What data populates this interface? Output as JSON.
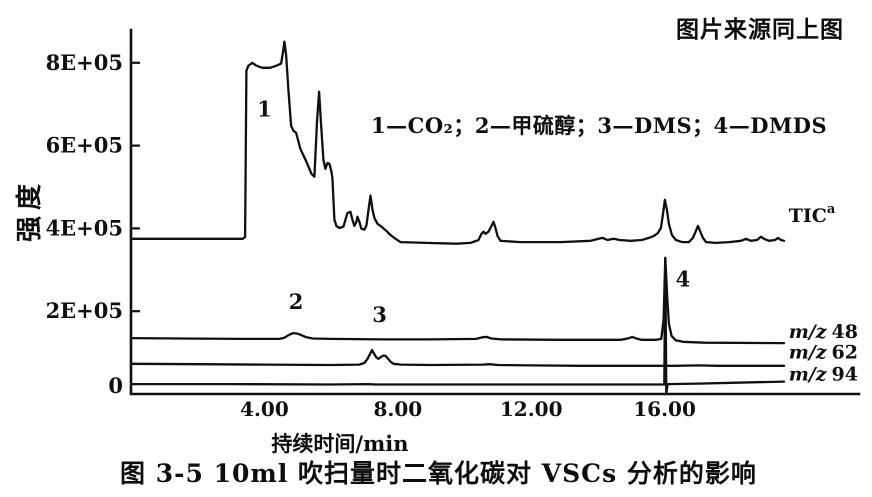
{
  "header": {
    "source_note": "图片来源同上图"
  },
  "figure": {
    "caption": "图 3-5  10ml 吹扫量时二氧化碳对 VSCs 分析的影响"
  },
  "chart_data": {
    "type": "line",
    "title": "图 3-5 10ml吹扫量时二氧化碳对VSCs分析的影响",
    "xlabel": "持续时间/min",
    "ylabel": "强度",
    "legend_text": "1—CO₂；2—甲硫醇；3—DMS；4—DMDS",
    "intensity_unit": "1E+05",
    "xlim": [
      0,
      21.8
    ],
    "ylim": [
      0,
      9
    ],
    "grid": false,
    "x_ticks": [
      {
        "t": 4,
        "label": "4.00"
      },
      {
        "t": 8,
        "label": "8.00"
      },
      {
        "t": 12,
        "label": "12.00"
      },
      {
        "t": 16,
        "label": "16.00"
      }
    ],
    "y_ticks": [
      {
        "v": 8,
        "label": "8E+05"
      },
      {
        "v": 6,
        "label": "6E+05"
      },
      {
        "v": 4,
        "label": "4E+05"
      },
      {
        "v": 2,
        "label": "2E+05"
      },
      {
        "v": 0,
        "label": "0"
      }
    ],
    "peak_annotations": [
      {
        "label": "1",
        "compound": "CO₂",
        "t": 4.0,
        "i": 6.7
      },
      {
        "label": "2",
        "compound": "甲硫醇",
        "t": 4.95,
        "i": 2.05
      },
      {
        "label": "3",
        "compound": "DMS",
        "t": 7.45,
        "i": 1.74
      },
      {
        "label": "4",
        "compound": "DMDS",
        "t": 16.55,
        "i": 2.6
      }
    ],
    "series": [
      {
        "name": "TIC",
        "sup": "a",
        "label_pos": {
          "t": 19.72,
          "i": 4.3
        },
        "points": [
          [
            0,
            3.75
          ],
          [
            3.35,
            3.75
          ],
          [
            3.42,
            3.79
          ],
          [
            3.46,
            7.81
          ],
          [
            3.52,
            7.93
          ],
          [
            3.64,
            8.0
          ],
          [
            3.76,
            7.93
          ],
          [
            3.94,
            7.88
          ],
          [
            4.17,
            7.88
          ],
          [
            4.36,
            7.93
          ],
          [
            4.5,
            7.98
          ],
          [
            4.56,
            8.27
          ],
          [
            4.6,
            8.51
          ],
          [
            4.65,
            8.19
          ],
          [
            4.72,
            7.35
          ],
          [
            4.8,
            6.48
          ],
          [
            4.87,
            6.36
          ],
          [
            4.95,
            6.31
          ],
          [
            5.08,
            5.92
          ],
          [
            5.26,
            5.61
          ],
          [
            5.41,
            5.32
          ],
          [
            5.5,
            5.25
          ],
          [
            5.58,
            6.62
          ],
          [
            5.64,
            7.3
          ],
          [
            5.7,
            6.5
          ],
          [
            5.77,
            5.66
          ],
          [
            5.83,
            5.44
          ],
          [
            5.89,
            5.58
          ],
          [
            5.95,
            5.56
          ],
          [
            6.01,
            5.37
          ],
          [
            6.04,
            5.22
          ],
          [
            6.1,
            4.21
          ],
          [
            6.16,
            4.06
          ],
          [
            6.25,
            4.01
          ],
          [
            6.37,
            4.04
          ],
          [
            6.49,
            4.37
          ],
          [
            6.58,
            4.4
          ],
          [
            6.64,
            4.21
          ],
          [
            6.7,
            4.06
          ],
          [
            6.76,
            4.16
          ],
          [
            6.79,
            4.28
          ],
          [
            6.85,
            4.16
          ],
          [
            6.91,
            3.99
          ],
          [
            7.0,
            3.97
          ],
          [
            7.06,
            4.08
          ],
          [
            7.12,
            4.45
          ],
          [
            7.18,
            4.79
          ],
          [
            7.24,
            4.45
          ],
          [
            7.3,
            4.25
          ],
          [
            7.39,
            4.11
          ],
          [
            7.51,
            4.04
          ],
          [
            7.63,
            3.96
          ],
          [
            7.78,
            3.84
          ],
          [
            7.93,
            3.75
          ],
          [
            8.08,
            3.67
          ],
          [
            8.85,
            3.65
          ],
          [
            9.75,
            3.63
          ],
          [
            10.18,
            3.65
          ],
          [
            10.42,
            3.72
          ],
          [
            10.51,
            3.87
          ],
          [
            10.57,
            3.92
          ],
          [
            10.63,
            3.87
          ],
          [
            10.72,
            3.92
          ],
          [
            10.81,
            4.06
          ],
          [
            10.87,
            4.16
          ],
          [
            10.93,
            4.01
          ],
          [
            10.99,
            3.82
          ],
          [
            11.08,
            3.7
          ],
          [
            11.68,
            3.67
          ],
          [
            12.88,
            3.67
          ],
          [
            13.78,
            3.7
          ],
          [
            14.02,
            3.75
          ],
          [
            14.14,
            3.77
          ],
          [
            14.29,
            3.72
          ],
          [
            14.47,
            3.75
          ],
          [
            14.65,
            3.72
          ],
          [
            14.98,
            3.7
          ],
          [
            15.32,
            3.72
          ],
          [
            15.53,
            3.77
          ],
          [
            15.68,
            3.82
          ],
          [
            15.8,
            3.89
          ],
          [
            15.89,
            4.01
          ],
          [
            15.95,
            4.33
          ],
          [
            16.01,
            4.69
          ],
          [
            16.07,
            4.45
          ],
          [
            16.13,
            4.11
          ],
          [
            16.22,
            3.84
          ],
          [
            16.34,
            3.72
          ],
          [
            16.52,
            3.67
          ],
          [
            16.73,
            3.67
          ],
          [
            16.85,
            3.77
          ],
          [
            16.94,
            3.94
          ],
          [
            17.0,
            4.06
          ],
          [
            17.06,
            3.94
          ],
          [
            17.15,
            3.77
          ],
          [
            17.24,
            3.67
          ],
          [
            17.54,
            3.65
          ],
          [
            17.93,
            3.67
          ],
          [
            18.29,
            3.7
          ],
          [
            18.44,
            3.75
          ],
          [
            18.59,
            3.7
          ],
          [
            18.77,
            3.72
          ],
          [
            18.89,
            3.8
          ],
          [
            18.98,
            3.75
          ],
          [
            19.13,
            3.7
          ],
          [
            19.31,
            3.72
          ],
          [
            19.4,
            3.77
          ],
          [
            19.49,
            3.72
          ],
          [
            19.58,
            3.7
          ]
        ]
      },
      {
        "name": "48",
        "prefix": "m/z",
        "label_pos": {
          "t": 19.72,
          "i": 1.5
        },
        "points": [
          [
            0,
            1.35
          ],
          [
            1.5,
            1.34
          ],
          [
            3.3,
            1.33
          ],
          [
            4.45,
            1.33
          ],
          [
            4.6,
            1.36
          ],
          [
            4.72,
            1.42
          ],
          [
            4.86,
            1.47
          ],
          [
            4.99,
            1.46
          ],
          [
            5.11,
            1.42
          ],
          [
            5.26,
            1.37
          ],
          [
            5.45,
            1.34
          ],
          [
            6.0,
            1.33
          ],
          [
            7.5,
            1.32
          ],
          [
            9.0,
            1.32
          ],
          [
            10.35,
            1.33
          ],
          [
            10.54,
            1.37
          ],
          [
            10.66,
            1.38
          ],
          [
            10.81,
            1.34
          ],
          [
            11.1,
            1.32
          ],
          [
            12.9,
            1.31
          ],
          [
            14.7,
            1.31
          ],
          [
            14.94,
            1.35
          ],
          [
            15.03,
            1.38
          ],
          [
            15.12,
            1.35
          ],
          [
            15.3,
            1.31
          ],
          [
            15.75,
            1.31
          ],
          [
            15.9,
            1.33
          ],
          [
            15.97,
            1.8
          ],
          [
            16.02,
            3.29
          ],
          [
            16.08,
            2.3
          ],
          [
            16.13,
            1.7
          ],
          [
            16.21,
            1.4
          ],
          [
            16.33,
            1.3
          ],
          [
            16.55,
            1.26
          ],
          [
            17.2,
            1.24
          ],
          [
            19.58,
            1.23
          ]
        ]
      },
      {
        "name": "62",
        "prefix": "m/z",
        "label_pos": {
          "t": 19.72,
          "i": 1.0
        },
        "points": [
          [
            0,
            0.73
          ],
          [
            2.0,
            0.72
          ],
          [
            4.0,
            0.71
          ],
          [
            6.0,
            0.7
          ],
          [
            6.85,
            0.71
          ],
          [
            7.0,
            0.75
          ],
          [
            7.09,
            0.85
          ],
          [
            7.17,
            0.97
          ],
          [
            7.23,
            1.06
          ],
          [
            7.29,
            0.97
          ],
          [
            7.36,
            0.88
          ],
          [
            7.42,
            0.85
          ],
          [
            7.48,
            0.89
          ],
          [
            7.57,
            0.93
          ],
          [
            7.63,
            0.92
          ],
          [
            7.7,
            0.86
          ],
          [
            7.78,
            0.78
          ],
          [
            7.87,
            0.73
          ],
          [
            8.1,
            0.71
          ],
          [
            9.0,
            0.7
          ],
          [
            10.55,
            0.71
          ],
          [
            10.75,
            0.72
          ],
          [
            11.0,
            0.7
          ],
          [
            12.0,
            0.69
          ],
          [
            13.5,
            0.68
          ],
          [
            15.8,
            0.68
          ],
          [
            16.3,
            0.68
          ],
          [
            17.0,
            0.69
          ],
          [
            17.6,
            0.68
          ],
          [
            19.58,
            0.68
          ]
        ]
      },
      {
        "name": "94",
        "prefix": "m/z",
        "label_pos": {
          "t": 19.72,
          "i": 0.47
        },
        "points": [
          [
            0,
            0.24
          ],
          [
            3.0,
            0.24
          ],
          [
            6.0,
            0.23
          ],
          [
            7.1,
            0.24
          ],
          [
            7.35,
            0.23
          ],
          [
            9.0,
            0.23
          ],
          [
            12.0,
            0.23
          ],
          [
            15.5,
            0.23
          ],
          [
            15.99,
            0.23
          ],
          [
            16.02,
            3.28
          ],
          [
            16.05,
            0.02
          ],
          [
            16.09,
            0.24
          ],
          [
            17.0,
            0.25
          ],
          [
            18.0,
            0.27
          ],
          [
            19.58,
            0.3
          ]
        ]
      }
    ]
  }
}
